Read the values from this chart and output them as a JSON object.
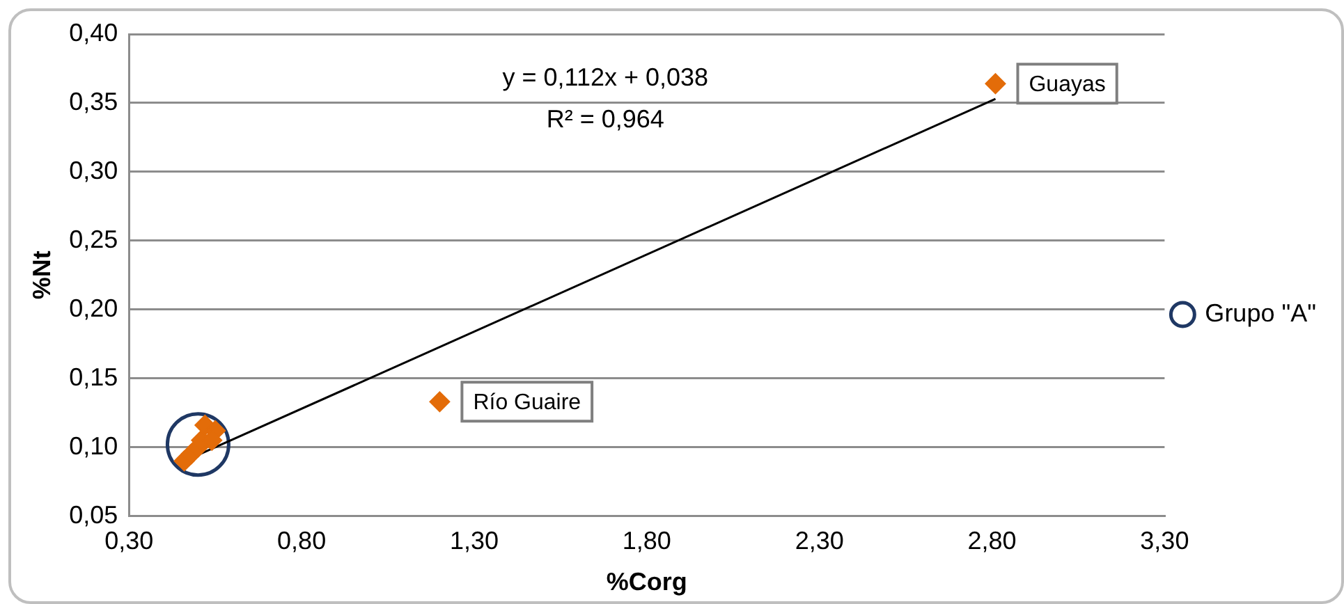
{
  "chart_data": {
    "type": "scatter",
    "xlabel": "%Corg",
    "ylabel": "%Nt",
    "xlim": [
      0.3,
      3.3
    ],
    "xticks": [
      {
        "value": 0.3,
        "label": "0,30"
      },
      {
        "value": 0.8,
        "label": "0,80"
      },
      {
        "value": 1.3,
        "label": "1,30"
      },
      {
        "value": 1.8,
        "label": "1,80"
      },
      {
        "value": 2.3,
        "label": "2,30"
      },
      {
        "value": 2.8,
        "label": "2,80"
      },
      {
        "value": 3.3,
        "label": "3,30"
      }
    ],
    "ylim": [
      0.05,
      0.4
    ],
    "yticks": [
      {
        "value": 0.05,
        "label": "0,05"
      },
      {
        "value": 0.1,
        "label": "0,10"
      },
      {
        "value": 0.15,
        "label": "0,15"
      },
      {
        "value": 0.2,
        "label": "0,20"
      },
      {
        "value": 0.25,
        "label": "0,25"
      },
      {
        "value": 0.3,
        "label": "0,30"
      },
      {
        "value": 0.35,
        "label": "0,35"
      },
      {
        "value": 0.4,
        "label": "0,40"
      }
    ],
    "grid": "y",
    "legend": "right",
    "series": [
      {
        "type": "scatter",
        "marker": "diamond",
        "color": "#e36c09",
        "x": [
          0.46,
          0.48,
          0.5,
          0.51,
          0.52,
          0.55,
          0.54,
          1.2,
          2.81
        ],
        "values": [
          0.09,
          0.095,
          0.1,
          0.105,
          0.116,
          0.112,
          0.105,
          0.133,
          0.364
        ]
      },
      {
        "type": "line",
        "marker": "none",
        "color": "#000000",
        "x": [
          0.47,
          2.81
        ],
        "values": [
          0.091,
          0.353
        ]
      },
      {
        "type": "scatter",
        "marker": "circle",
        "name": "Grupo \"A\"",
        "color": "#1f3864",
        "x": [
          0.5
        ],
        "values": [
          0.102
        ]
      }
    ],
    "annotations": [
      "y = 0,112x + 0,038",
      "R² = 0,964",
      {
        "text": "Guayas",
        "x": 2.81,
        "y": 0.364
      },
      {
        "text": "Río Guaire",
        "x": 1.2,
        "y": 0.133
      }
    ]
  }
}
